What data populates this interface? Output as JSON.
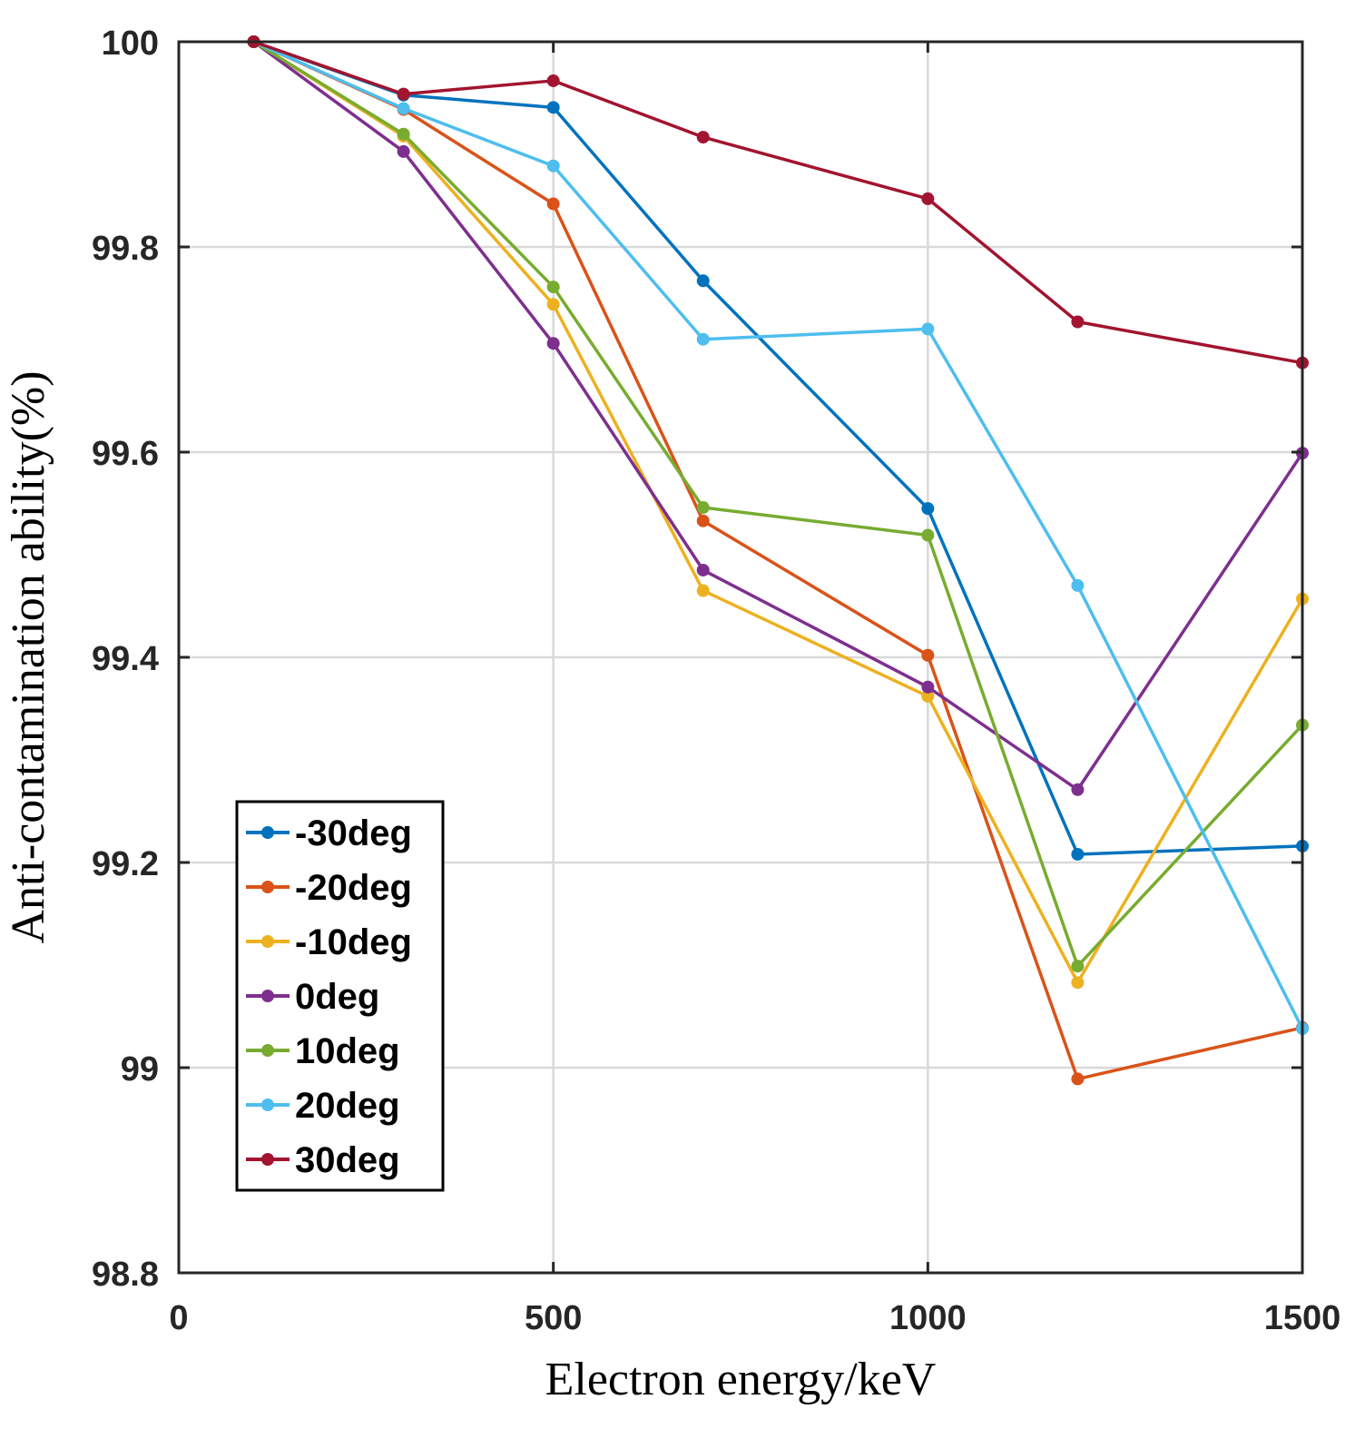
{
  "chart_data": {
    "type": "line",
    "title": "",
    "xlabel": "Electron energy/keV",
    "ylabel": "Anti-contamination ability(%)",
    "xlim": [
      0,
      1500
    ],
    "ylim": [
      98.8,
      100
    ],
    "xticks": [
      0,
      500,
      1000,
      1500
    ],
    "xtick_labels": [
      "0",
      "500",
      "1000",
      "1500"
    ],
    "yticks": [
      98.8,
      99,
      99.2,
      99.4,
      99.6,
      99.8,
      100
    ],
    "ytick_labels": [
      "98.8",
      "99",
      "99.2",
      "99.4",
      "99.6",
      "99.8",
      "100"
    ],
    "grid": true,
    "legend_position": "lower-left",
    "x": [
      100,
      300,
      500,
      700,
      1000,
      1200,
      1500
    ],
    "series": [
      {
        "name": "-30deg",
        "color": "#0072BD",
        "values": [
          100,
          99.948,
          99.936,
          99.767,
          99.545,
          99.208,
          99.216
        ]
      },
      {
        "name": "-20deg",
        "color": "#D95319",
        "values": [
          100,
          99.934,
          99.842,
          99.533,
          99.402,
          98.989,
          99.039
        ]
      },
      {
        "name": "-10deg",
        "color": "#EDB120",
        "values": [
          100,
          99.908,
          99.744,
          99.465,
          99.362,
          99.083,
          99.457
        ]
      },
      {
        "name": "0deg",
        "color": "#7E2F8E",
        "values": [
          100,
          99.893,
          99.706,
          99.485,
          99.371,
          99.271,
          99.599
        ]
      },
      {
        "name": "10deg",
        "color": "#77AC30",
        "values": [
          100,
          99.91,
          99.761,
          99.546,
          99.519,
          99.099,
          99.334
        ]
      },
      {
        "name": "20deg",
        "color": "#4DBEEE",
        "values": [
          100,
          99.935,
          99.879,
          99.71,
          99.72,
          99.47,
          99.038
        ]
      },
      {
        "name": "30deg",
        "color": "#A2142F",
        "values": [
          100,
          99.949,
          99.962,
          99.907,
          99.847,
          99.727,
          99.687
        ]
      }
    ]
  }
}
